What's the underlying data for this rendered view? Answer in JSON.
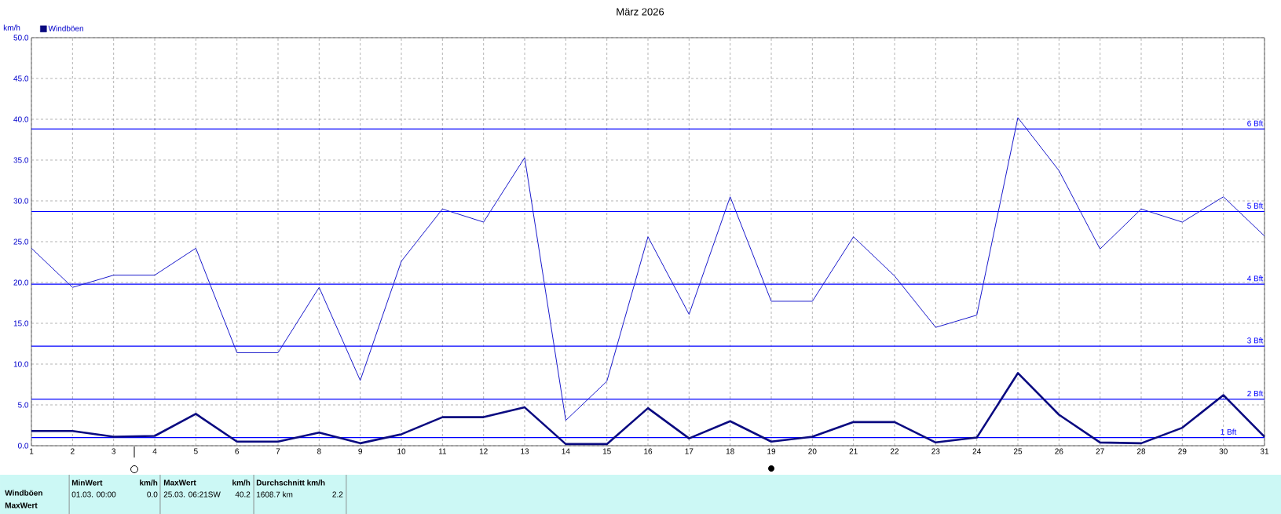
{
  "chart_data": {
    "type": "line",
    "title": "März 2026",
    "ylabel": "km/h",
    "x": [
      1,
      2,
      3,
      4,
      5,
      6,
      7,
      8,
      9,
      10,
      11,
      12,
      13,
      14,
      15,
      16,
      17,
      18,
      19,
      20,
      21,
      22,
      23,
      24,
      25,
      26,
      27,
      28,
      29,
      30,
      31
    ],
    "series": [
      {
        "color": "#1a1acc",
        "values": [
          24.2,
          19.4,
          20.9,
          20.9,
          24.2,
          11.4,
          11.4,
          19.4,
          8.0,
          22.6,
          29.0,
          27.4,
          35.3,
          3.1,
          7.9,
          25.6,
          16.1,
          30.5,
          17.7,
          17.7,
          25.6,
          20.8,
          14.5,
          16.0,
          40.2,
          33.7,
          24.1,
          29.0,
          27.4,
          30.5,
          25.7
        ]
      },
      {
        "name": "Windböen",
        "color": "#0a0a80",
        "values": [
          1.8,
          1.8,
          1.1,
          1.2,
          3.9,
          0.5,
          0.5,
          1.6,
          0.3,
          1.4,
          3.5,
          3.5,
          4.7,
          0.2,
          0.2,
          4.6,
          0.9,
          3.0,
          0.5,
          1.1,
          2.9,
          2.9,
          0.4,
          1.0,
          8.9,
          3.8,
          0.4,
          0.3,
          2.2,
          6.2,
          1.1
        ]
      }
    ],
    "xlim": [
      1,
      31
    ],
    "xticks": [
      1,
      2,
      3,
      4,
      5,
      6,
      7,
      8,
      9,
      10,
      11,
      12,
      13,
      14,
      15,
      16,
      17,
      18,
      19,
      20,
      21,
      22,
      23,
      24,
      25,
      26,
      27,
      28,
      29,
      30,
      31
    ],
    "ylim": [
      0,
      50
    ],
    "yticks": [
      {
        "value": 0,
        "label": "0.0"
      },
      {
        "value": 5,
        "label": "5.0"
      },
      {
        "value": 10,
        "label": "10.0"
      },
      {
        "value": 15,
        "label": "15.0"
      },
      {
        "value": 20,
        "label": "20.0"
      },
      {
        "value": 25,
        "label": "25.0"
      },
      {
        "value": 30,
        "label": "30.0"
      },
      {
        "value": 35,
        "label": "35.0"
      },
      {
        "value": 40,
        "label": "40.0"
      },
      {
        "value": 45,
        "label": "45.0"
      },
      {
        "value": 50,
        "label": "50.0"
      }
    ],
    "ref_lines": [
      {
        "axis": "y",
        "value": 1.0,
        "label": "1 Bft",
        "color": "#0000ff"
      },
      {
        "axis": "y",
        "value": 5.7,
        "label": "2 Bft",
        "color": "#0000ff"
      },
      {
        "axis": "y",
        "value": 12.2,
        "label": "3 Bft",
        "color": "#0000ff"
      },
      {
        "axis": "y",
        "value": 19.8,
        "label": "4 Bft",
        "color": "#0000ff"
      },
      {
        "axis": "y",
        "value": 28.7,
        "label": "5 Bft",
        "color": "#0000ff"
      },
      {
        "axis": "y",
        "value": 38.8,
        "label": "6 Bft",
        "color": "#0000ff"
      }
    ],
    "annotations": [
      "Windböen",
      "MaxWert",
      "MinWert",
      "km/h",
      "01.03.  00:00",
      "0.0",
      "MaxWert",
      "km/h",
      "25.03.  06:21SW",
      "40.2",
      "Durchschnitt km/h",
      "1608.7 km",
      "2.2"
    ],
    "grid": true,
    "legend": "top left",
    "marker": "none",
    "line_style": "solid"
  }
}
